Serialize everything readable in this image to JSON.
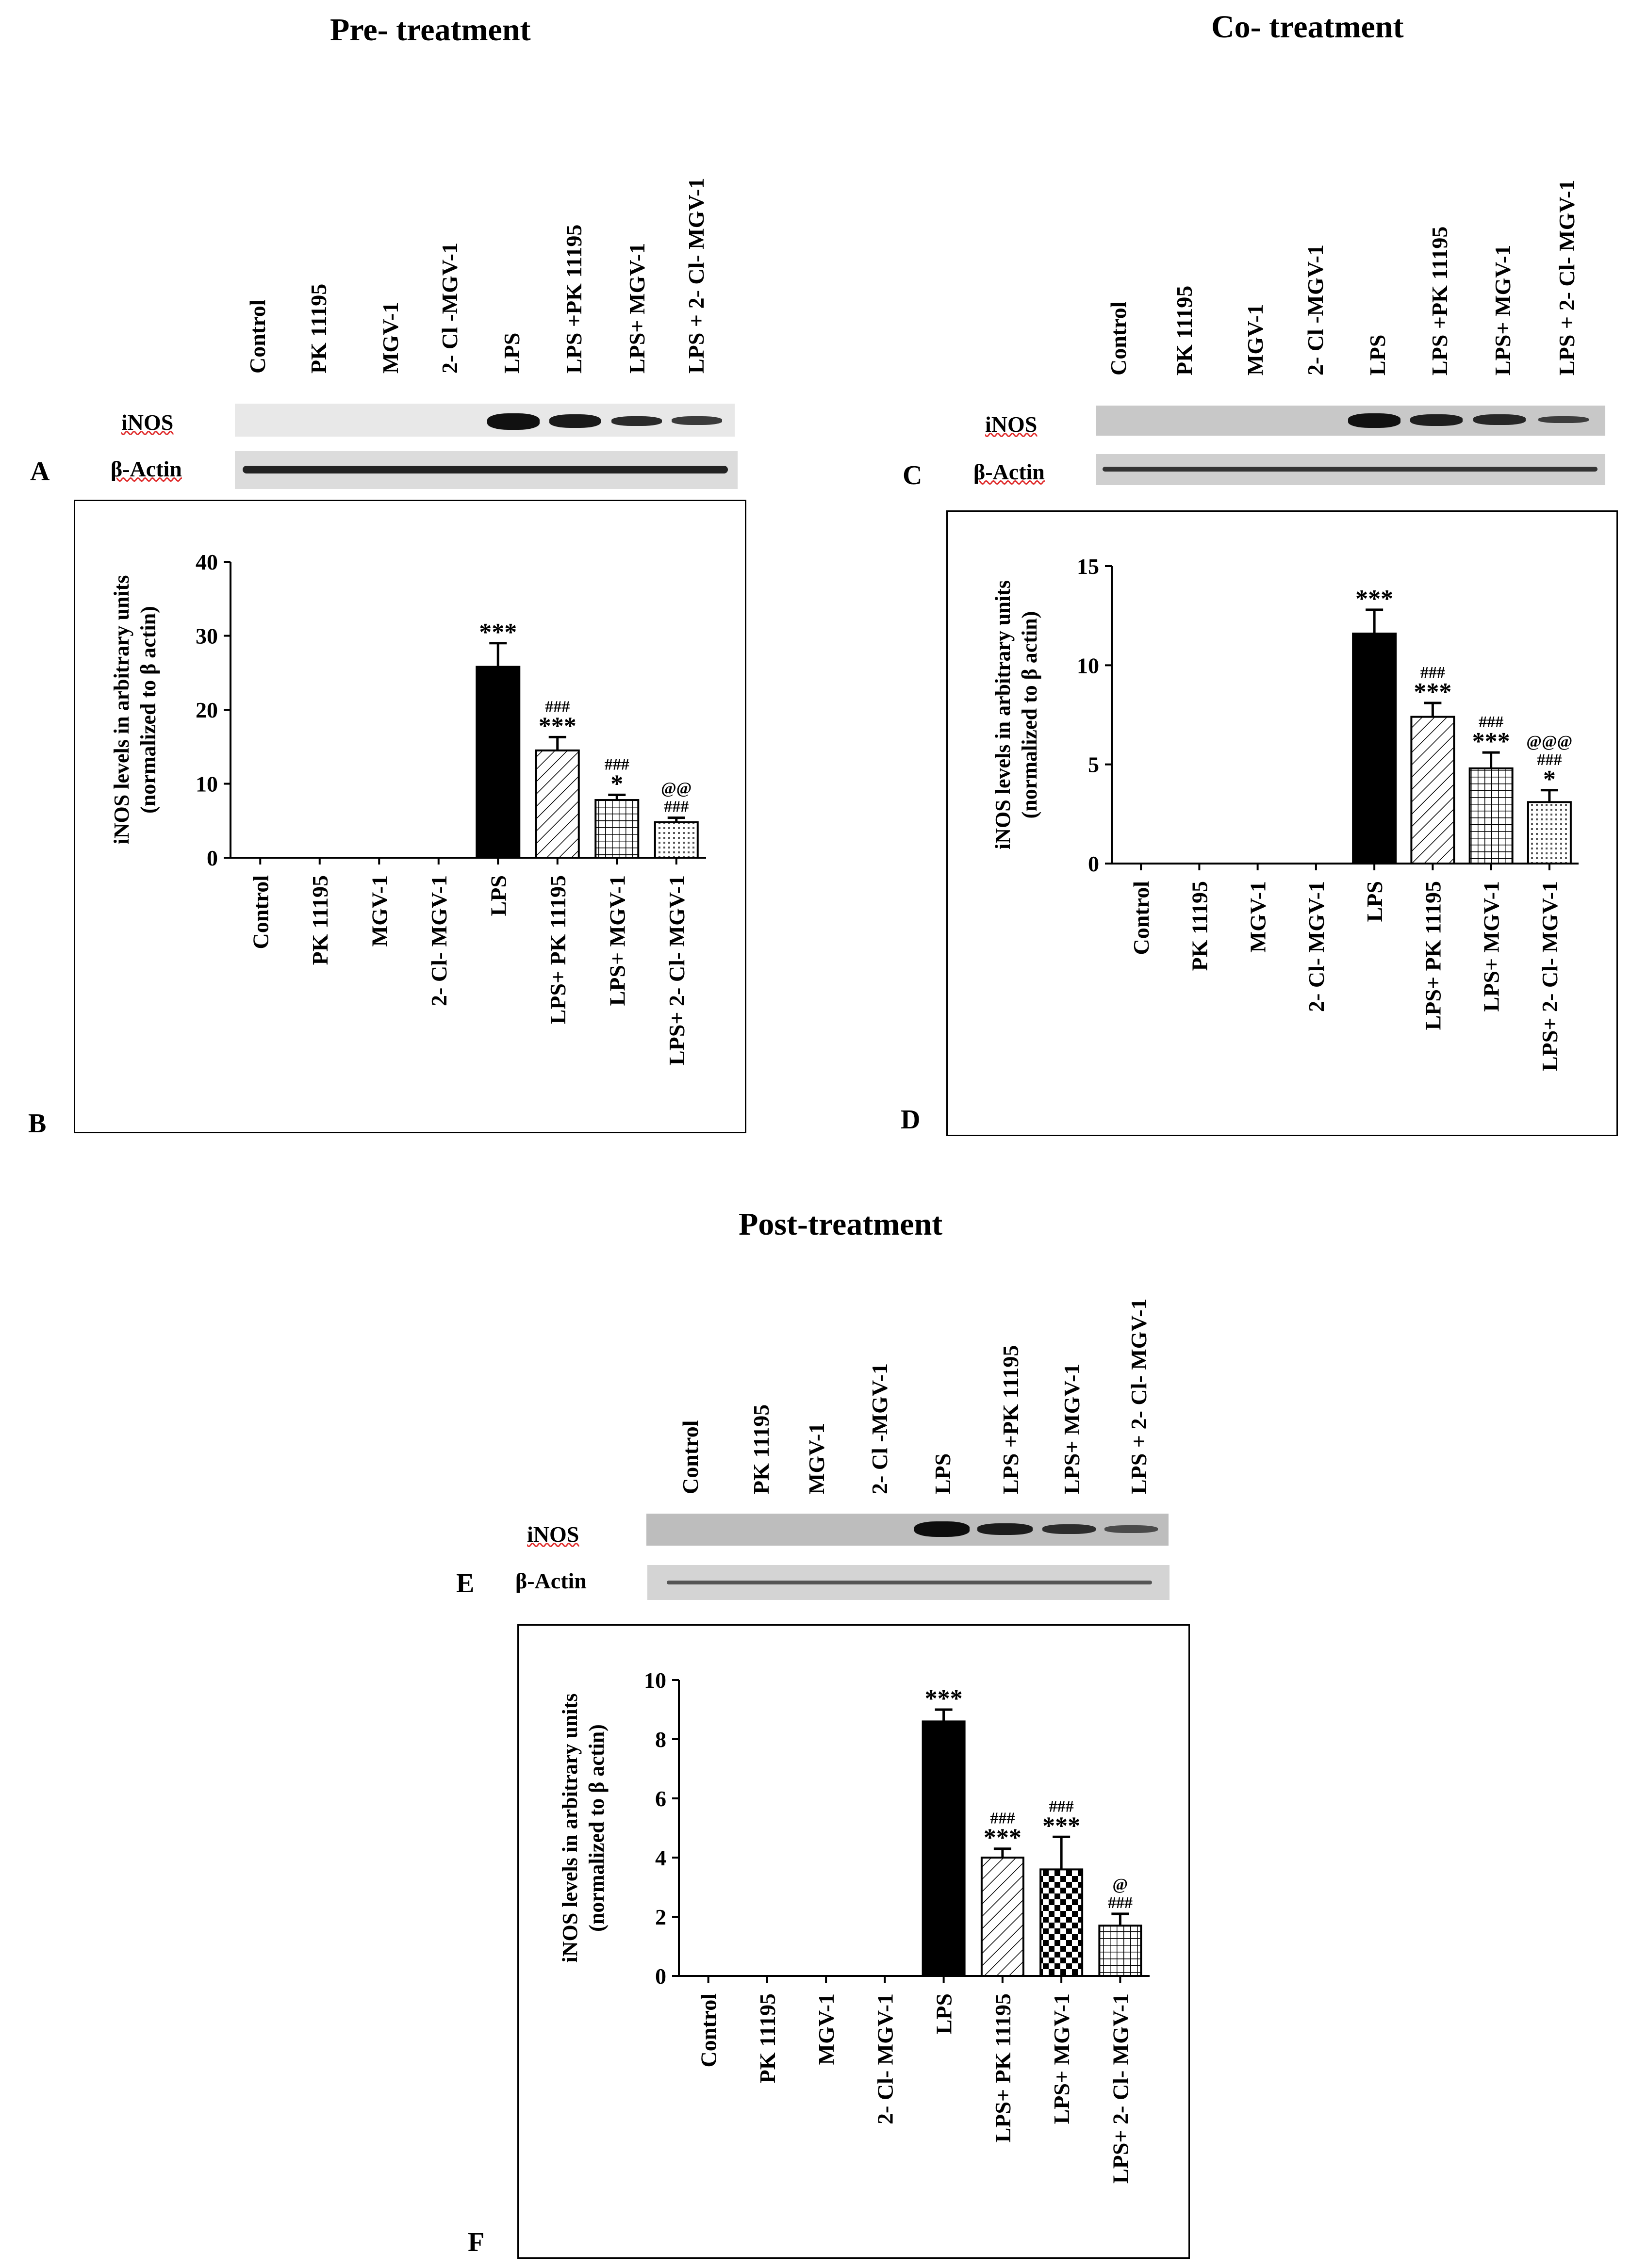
{
  "panels": [
    {
      "title": "Pre- treatment",
      "blot_letter": "A",
      "chart_letter": "B",
      "blot_lanes": [
        "Control",
        "PK 11195",
        "MGV-1",
        "2- Cl -MGV-1",
        "LPS",
        "LPS +PK 11195",
        "LPS+ MGV-1",
        "LPS + 2- Cl- MGV-1"
      ],
      "blot_rows": [
        "iNOS",
        "β-Actin"
      ]
    },
    {
      "title": "Co- treatment",
      "blot_letter": "C",
      "chart_letter": "D",
      "blot_lanes": [
        "Control",
        "PK 11195",
        "MGV-1",
        "2- Cl -MGV-1",
        "LPS",
        "LPS +PK 11195",
        "LPS+ MGV-1",
        "LPS + 2- Cl- MGV-1"
      ],
      "blot_rows": [
        "iNOS",
        "β-Actin"
      ]
    },
    {
      "title": "Post-treatment",
      "blot_letter": "E",
      "chart_letter": "F",
      "blot_lanes": [
        "Control",
        "PK 11195",
        "MGV-1",
        "2- Cl -MGV-1",
        "LPS",
        "LPS +PK 11195",
        "LPS+ MGV-1",
        "LPS + 2- Cl- MGV-1"
      ],
      "blot_rows": [
        "iNOS",
        "β-Actin"
      ]
    }
  ],
  "chart_data": [
    {
      "type": "bar",
      "title": "Pre- treatment",
      "ylabel_line1": "iNOS levels in arbitrary units",
      "ylabel_line2": "(normalized to β actin)",
      "categories": [
        "Control",
        "PK 11195",
        "MGV-1",
        "2- Cl- MGV-1",
        "LPS",
        "LPS+ PK 11195",
        "LPS+ MGV-1",
        "LPS+ 2- Cl- MGV-1"
      ],
      "values": [
        0,
        0,
        0,
        0,
        25.8,
        14.5,
        7.8,
        4.8
      ],
      "errors": [
        0,
        0,
        0,
        0,
        3.2,
        1.8,
        0.7,
        0.6
      ],
      "annotations": [
        [
          "",
          "",
          ""
        ],
        [
          "",
          "",
          ""
        ],
        [
          "",
          "",
          ""
        ],
        [
          "",
          "",
          ""
        ],
        [
          "",
          "",
          "***"
        ],
        [
          "",
          "###",
          "***"
        ],
        [
          "",
          "###",
          "*"
        ],
        [
          "",
          "@@",
          "###"
        ]
      ],
      "ylim": [
        0,
        40
      ],
      "yticks": [
        0,
        10,
        20,
        30,
        40
      ],
      "fills": [
        "none",
        "none",
        "none",
        "none",
        "solid",
        "diag",
        "grid",
        "dots"
      ]
    },
    {
      "type": "bar",
      "title": "Co- treatment",
      "ylabel_line1": "iNOS levels in arbitrary units",
      "ylabel_line2": "(normalized to β actin)",
      "categories": [
        "Control",
        "PK 11195",
        "MGV-1",
        "2- Cl- MGV-1",
        "LPS",
        "LPS+ PK 11195",
        "LPS+ MGV-1",
        "LPS+ 2- Cl- MGV-1"
      ],
      "values": [
        0,
        0,
        0,
        0,
        11.6,
        7.4,
        4.8,
        3.1
      ],
      "errors": [
        0,
        0,
        0,
        0,
        1.2,
        0.7,
        0.8,
        0.6
      ],
      "annotations": [
        [
          "",
          "",
          ""
        ],
        [
          "",
          "",
          ""
        ],
        [
          "",
          "",
          ""
        ],
        [
          "",
          "",
          ""
        ],
        [
          "",
          "",
          "***"
        ],
        [
          "",
          "###",
          "***"
        ],
        [
          "",
          "###",
          "***"
        ],
        [
          "@@@",
          "###",
          "*"
        ]
      ],
      "ylim": [
        0,
        15
      ],
      "yticks": [
        0,
        5,
        10,
        15
      ],
      "fills": [
        "none",
        "none",
        "none",
        "none",
        "solid",
        "diag",
        "grid",
        "dots"
      ]
    },
    {
      "type": "bar",
      "title": "Post-treatment",
      "ylabel_line1": "iNOS levels in arbitrary units",
      "ylabel_line2": "(normalized to β actin)",
      "categories": [
        "Control",
        "PK 11195",
        "MGV-1",
        "2- Cl- MGV-1",
        "LPS",
        "LPS+ PK 11195",
        "LPS+ MGV-1",
        "LPS+ 2- Cl- MGV-1"
      ],
      "values": [
        0,
        0,
        0,
        0,
        8.6,
        4.0,
        3.6,
        1.7
      ],
      "errors": [
        0,
        0,
        0,
        0,
        0.4,
        0.3,
        1.1,
        0.4
      ],
      "annotations": [
        [
          "",
          "",
          ""
        ],
        [
          "",
          "",
          ""
        ],
        [
          "",
          "",
          ""
        ],
        [
          "",
          "",
          ""
        ],
        [
          "",
          "",
          "***"
        ],
        [
          "",
          "###",
          "***"
        ],
        [
          "",
          "###",
          "***"
        ],
        [
          "",
          "@",
          "###"
        ]
      ],
      "ylim": [
        0,
        10
      ],
      "yticks": [
        0,
        2,
        4,
        6,
        8,
        10
      ],
      "fills": [
        "none",
        "none",
        "none",
        "none",
        "solid",
        "diag",
        "checker",
        "grid"
      ]
    }
  ]
}
